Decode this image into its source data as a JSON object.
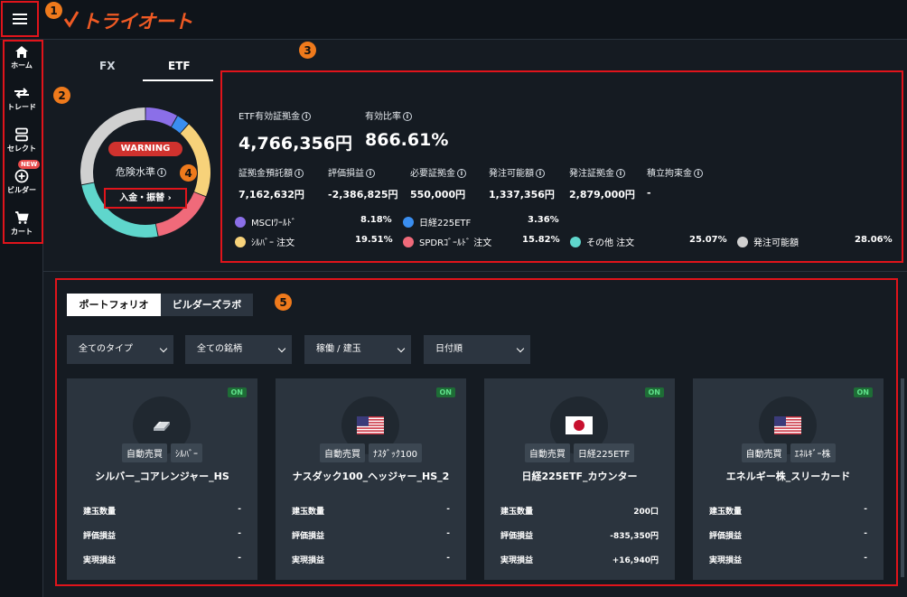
{
  "header": {
    "logo_text": "トライオート"
  },
  "callouts": [
    "1",
    "2",
    "3",
    "4",
    "5"
  ],
  "sidebar": {
    "items": [
      {
        "label": "ホーム",
        "icon": "home-icon"
      },
      {
        "label": "トレード",
        "icon": "trade-arrows-icon"
      },
      {
        "label": "セレクト",
        "icon": "select-icon"
      },
      {
        "label": "ビルダー",
        "icon": "builder-plus-icon",
        "badge": "NEW"
      },
      {
        "label": "カート",
        "icon": "cart-icon"
      }
    ]
  },
  "account_tabs": [
    {
      "label": "FX"
    },
    {
      "label": "ETF",
      "active": true
    }
  ],
  "risk": {
    "warning": "WARNING",
    "level_label": "危険水準",
    "deposit_button": "入金・振替"
  },
  "summary": {
    "margin_label": "ETF有効証拠金",
    "margin_value": "4,766,356円",
    "ratio_label": "有効比率",
    "ratio_value": "866.61%",
    "metrics": [
      {
        "label": "証拠金預託額",
        "value": "7,162,632円"
      },
      {
        "label": "評価損益",
        "value": "-2,386,825円"
      },
      {
        "label": "必要証拠金",
        "value": "550,000円"
      },
      {
        "label": "発注可能額",
        "value": "1,337,356円"
      },
      {
        "label": "発注証拠金",
        "value": "2,879,000円"
      },
      {
        "label": "積立拘束金",
        "value": "-"
      }
    ],
    "legend": [
      {
        "label": "MSCIﾜｰﾙﾄﾞ",
        "pct": "8.18%",
        "value": 8.18,
        "color": "#8b6fe8"
      },
      {
        "label": "日経225ETF",
        "pct": "3.36%",
        "value": 3.36,
        "color": "#3a8ef0"
      },
      {
        "label": "ｼﾙﾊﾞｰ 注文",
        "pct": "19.51%",
        "value": 19.51,
        "color": "#f7d27a"
      },
      {
        "label": "SPDRｺﾞｰﾙﾄﾞ 注文",
        "pct": "15.82%",
        "value": 15.82,
        "color": "#f06a7a"
      },
      {
        "label": "その他 注文",
        "pct": "25.07%",
        "value": 25.07,
        "color": "#5fd6cc"
      },
      {
        "label": "発注可能額",
        "pct": "28.06%",
        "value": 28.06,
        "color": "#d0d0d0"
      }
    ]
  },
  "portfolio": {
    "tabs": [
      {
        "label": "ポートフォリオ",
        "active": true
      },
      {
        "label": "ビルダーズラボ"
      }
    ],
    "filters": [
      "全てのタイプ",
      "全ての銘柄",
      "稼働 / 建玉",
      "日付順"
    ],
    "row_labels": {
      "position": "建玉数量",
      "unrealized": "評価損益",
      "realized": "実現損益"
    },
    "cards": [
      {
        "status": "ON",
        "icon": "silver-ingot-icon",
        "tags": [
          "自動売買",
          "ｼﾙﾊﾞｰ"
        ],
        "title": "シルバー_コアレンジャー_HS",
        "position": "-",
        "unrealized": "-",
        "realized": "-"
      },
      {
        "status": "ON",
        "icon": "us-flag-icon",
        "tags": [
          "自動売買",
          "ﾅｽﾀﾞｯｸ100"
        ],
        "title": "ナスダック100_ヘッジャー_HS_2",
        "position": "-",
        "unrealized": "-",
        "realized": "-"
      },
      {
        "status": "ON",
        "icon": "jp-flag-icon",
        "tags": [
          "自動売買",
          "日経225ETF"
        ],
        "title": "日経225ETF_カウンター",
        "position": "200口",
        "unrealized": "-835,350円",
        "realized": "+16,940円"
      },
      {
        "status": "ON",
        "icon": "us-flag-icon",
        "tags": [
          "自動売買",
          "ｴﾈﾙｷﾞｰ株"
        ],
        "title": "エネルギー株_スリーカード",
        "position": "-",
        "unrealized": "-",
        "realized": "-"
      }
    ]
  }
}
